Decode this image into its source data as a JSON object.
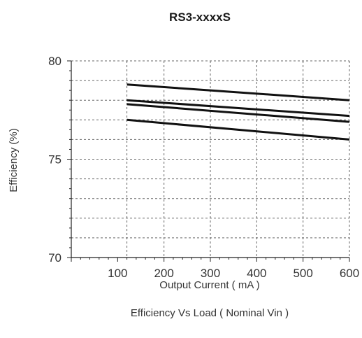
{
  "chart_data": {
    "type": "line",
    "title": "RS3-xxxxS",
    "xlabel": "Output Current ( mA )",
    "ylabel": "Efficiency (%)",
    "caption": "Efficiency  Vs Load ( Nominal Vin )",
    "xlim": [
      0,
      600
    ],
    "ylim": [
      70,
      80
    ],
    "x_ticks": [
      100,
      200,
      300,
      400,
      500,
      600
    ],
    "y_ticks": [
      70,
      75,
      80
    ],
    "x_grid": [
      120,
      200,
      300,
      400,
      500,
      600
    ],
    "y_grid": [
      71,
      72,
      73,
      74,
      75,
      76,
      77,
      78,
      79,
      80
    ],
    "grid": true,
    "series": [
      {
        "x": [
          120,
          600
        ],
        "values": [
          78.8,
          78.0
        ]
      },
      {
        "x": [
          120,
          600
        ],
        "values": [
          78.0,
          77.2
        ]
      },
      {
        "x": [
          120,
          600
        ],
        "values": [
          77.8,
          76.9
        ]
      },
      {
        "x": [
          120,
          600
        ],
        "values": [
          77.0,
          76.0
        ]
      }
    ]
  }
}
